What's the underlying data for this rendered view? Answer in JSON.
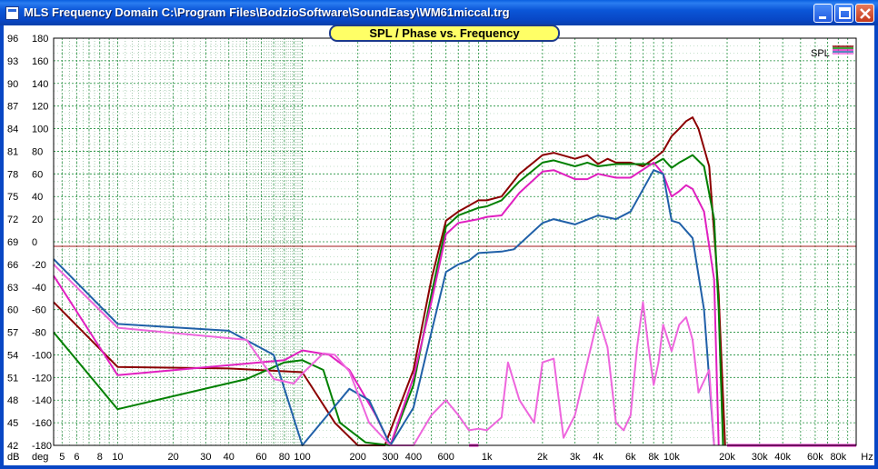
{
  "window": {
    "title": "MLS Frequency Domain  C:\\Program Files\\BodzioSoftware\\SoundEasy\\WM61miccal.trg",
    "buttons": [
      "minimize",
      "maximize",
      "close"
    ],
    "colors": {
      "titlebar": "#0846c4",
      "title_pill": "#ffff66"
    }
  },
  "chart_data": {
    "type": "line",
    "title": "SPL / Phase vs. Frequency",
    "xscale": "log",
    "xlim": [
      4.5,
      100000
    ],
    "x_ticks": [
      {
        "v": 5,
        "label": "5"
      },
      {
        "v": 6,
        "label": "6"
      },
      {
        "v": 8,
        "label": "8"
      },
      {
        "v": 10,
        "label": "10"
      },
      {
        "v": 20,
        "label": "20"
      },
      {
        "v": 30,
        "label": "30"
      },
      {
        "v": 40,
        "label": "40"
      },
      {
        "v": 60,
        "label": "60"
      },
      {
        "v": 80,
        "label": "80"
      },
      {
        "v": 100,
        "label": "100"
      },
      {
        "v": 200,
        "label": "200"
      },
      {
        "v": 300,
        "label": "300"
      },
      {
        "v": 400,
        "label": "400"
      },
      {
        "v": 600,
        "label": "600"
      },
      {
        "v": 1000,
        "label": "1k"
      },
      {
        "v": 2000,
        "label": "2k"
      },
      {
        "v": 3000,
        "label": "3k"
      },
      {
        "v": 4000,
        "label": "4k"
      },
      {
        "v": 6000,
        "label": "6k"
      },
      {
        "v": 8000,
        "label": "8k"
      },
      {
        "v": 10000,
        "label": "10k"
      },
      {
        "v": 20000,
        "label": "20k"
      },
      {
        "v": 30000,
        "label": "30k"
      },
      {
        "v": 40000,
        "label": "40k"
      },
      {
        "v": 60000,
        "label": "60k"
      },
      {
        "v": 80000,
        "label": "80k"
      }
    ],
    "x_unit": "Hz",
    "y_left": {
      "unit": "dB",
      "ylim": [
        42,
        96
      ],
      "ticks": [
        96,
        93,
        90,
        87,
        84,
        81,
        78,
        75,
        72,
        69,
        66,
        63,
        60,
        57,
        54,
        51,
        48,
        45,
        42
      ]
    },
    "y_right": {
      "unit": "deg",
      "ylim": [
        -180,
        180
      ],
      "ticks": [
        "180",
        "160",
        "140",
        "120",
        "100",
        "80",
        "60",
        "40",
        "20",
        "0",
        "-20",
        "-40",
        "-60",
        "-80",
        "-100",
        "-120",
        "-140",
        "-160",
        "-180"
      ]
    },
    "grid": true,
    "reference_line_db": 68.4,
    "legend": {
      "label": "SPL",
      "placement": "top-right"
    },
    "series": [
      {
        "color": "#8b0000",
        "points": [
          [
            4.5,
            61
          ],
          [
            10,
            52.4
          ],
          [
            40,
            52.2
          ],
          [
            100,
            51.7
          ],
          [
            150,
            45
          ],
          [
            200,
            42
          ],
          [
            280,
            42
          ],
          [
            400,
            52
          ],
          [
            500,
            64
          ],
          [
            600,
            71.8
          ],
          [
            700,
            73
          ],
          [
            900,
            74.5
          ],
          [
            1000,
            74.5
          ],
          [
            1200,
            75
          ],
          [
            1500,
            78
          ],
          [
            2000,
            80.5
          ],
          [
            2300,
            80.8
          ],
          [
            3000,
            80
          ],
          [
            3500,
            80.5
          ],
          [
            4000,
            79.3
          ],
          [
            4500,
            80
          ],
          [
            5000,
            79.5
          ],
          [
            6000,
            79.5
          ],
          [
            7000,
            79
          ],
          [
            8000,
            80
          ],
          [
            9000,
            81
          ],
          [
            10000,
            83
          ],
          [
            11000,
            84
          ],
          [
            12000,
            85
          ],
          [
            13000,
            85.5
          ],
          [
            14000,
            84
          ],
          [
            16000,
            79
          ],
          [
            18000,
            62
          ],
          [
            19500,
            42
          ]
        ]
      },
      {
        "color": "#008000",
        "points": [
          [
            4.5,
            57
          ],
          [
            10,
            46.8
          ],
          [
            50,
            50.8
          ],
          [
            80,
            53
          ],
          [
            100,
            53.3
          ],
          [
            130,
            52
          ],
          [
            160,
            45
          ],
          [
            220,
            42.4
          ],
          [
            300,
            42
          ],
          [
            400,
            50
          ],
          [
            500,
            62
          ],
          [
            600,
            71
          ],
          [
            700,
            72.5
          ],
          [
            900,
            73.5
          ],
          [
            1000,
            73.7
          ],
          [
            1200,
            74.5
          ],
          [
            1500,
            77
          ],
          [
            2000,
            79.5
          ],
          [
            2300,
            79.8
          ],
          [
            3000,
            79
          ],
          [
            3500,
            79.5
          ],
          [
            4000,
            79
          ],
          [
            5000,
            79.3
          ],
          [
            6000,
            79.3
          ],
          [
            8000,
            79.3
          ],
          [
            9000,
            80
          ],
          [
            10000,
            78.8
          ],
          [
            11000,
            79.5
          ],
          [
            12000,
            80
          ],
          [
            13000,
            80.5
          ],
          [
            15000,
            79
          ],
          [
            17000,
            72
          ],
          [
            18000,
            60
          ],
          [
            19000,
            42
          ]
        ]
      },
      {
        "color": "#e020c0",
        "points": [
          [
            4.5,
            64.5
          ],
          [
            10,
            51.3
          ],
          [
            80,
            53.3
          ],
          [
            100,
            54.6
          ],
          [
            140,
            54
          ],
          [
            180,
            52
          ],
          [
            250,
            46
          ],
          [
            300,
            42
          ],
          [
            400,
            51
          ],
          [
            500,
            61
          ],
          [
            600,
            70
          ],
          [
            700,
            71.5
          ],
          [
            900,
            72
          ],
          [
            1000,
            72.3
          ],
          [
            1200,
            72.5
          ],
          [
            1500,
            75.5
          ],
          [
            2000,
            78.3
          ],
          [
            2300,
            78.5
          ],
          [
            3000,
            77.3
          ],
          [
            3500,
            77.3
          ],
          [
            4000,
            78
          ],
          [
            5000,
            77.5
          ],
          [
            6000,
            77.5
          ],
          [
            8000,
            79.5
          ],
          [
            9000,
            78
          ],
          [
            10000,
            75
          ],
          [
            11000,
            75.7
          ],
          [
            12000,
            76.5
          ],
          [
            13000,
            76
          ],
          [
            15000,
            73
          ],
          [
            17000,
            64
          ],
          [
            18000,
            42
          ]
        ]
      },
      {
        "color": "#2060a8",
        "points": [
          [
            4.5,
            66.7
          ],
          [
            10,
            58.1
          ],
          [
            40,
            57.2
          ],
          [
            70,
            54
          ],
          [
            100,
            42
          ],
          [
            180,
            49.5
          ],
          [
            230,
            48
          ],
          [
            300,
            42
          ],
          [
            400,
            47
          ],
          [
            500,
            57
          ],
          [
            600,
            65
          ],
          [
            700,
            66
          ],
          [
            800,
            66.5
          ],
          [
            900,
            67.5
          ],
          [
            1200,
            67.7
          ],
          [
            1400,
            68
          ],
          [
            2000,
            71.5
          ],
          [
            2300,
            72
          ],
          [
            3000,
            71.3
          ],
          [
            4000,
            72.5
          ],
          [
            5000,
            72
          ],
          [
            6000,
            73
          ],
          [
            8000,
            78.5
          ],
          [
            9000,
            78
          ],
          [
            10000,
            71.8
          ],
          [
            11000,
            71.5
          ],
          [
            13000,
            69.5
          ],
          [
            15000,
            60
          ],
          [
            17000,
            42
          ]
        ]
      },
      {
        "color": "#ee66dd",
        "points": [
          [
            4.5,
            66
          ],
          [
            10,
            57.6
          ],
          [
            50,
            56
          ],
          [
            70,
            50.8
          ],
          [
            90,
            50.2
          ],
          [
            100,
            51.5
          ],
          [
            130,
            54.2
          ],
          [
            150,
            54
          ],
          [
            180,
            51.8
          ],
          [
            230,
            45
          ],
          [
            300,
            42
          ],
          [
            400,
            42
          ],
          [
            500,
            46
          ],
          [
            600,
            48
          ],
          [
            700,
            46
          ],
          [
            800,
            44
          ],
          [
            900,
            44.2
          ],
          [
            1000,
            44
          ],
          [
            1200,
            45.7
          ],
          [
            1300,
            53
          ],
          [
            1500,
            48
          ],
          [
            1800,
            45
          ],
          [
            2000,
            53
          ],
          [
            2300,
            53.5
          ],
          [
            2600,
            43
          ],
          [
            3000,
            46
          ],
          [
            3500,
            53
          ],
          [
            4000,
            59
          ],
          [
            4500,
            55
          ],
          [
            5000,
            45
          ],
          [
            5500,
            44
          ],
          [
            6000,
            46
          ],
          [
            6500,
            55
          ],
          [
            7000,
            61
          ],
          [
            7500,
            55
          ],
          [
            8000,
            50
          ],
          [
            8500,
            53
          ],
          [
            9000,
            58
          ],
          [
            10000,
            54.5
          ],
          [
            11000,
            58
          ],
          [
            12000,
            59
          ],
          [
            13000,
            56
          ],
          [
            14000,
            49
          ],
          [
            16000,
            52
          ],
          [
            17000,
            42
          ]
        ]
      }
    ]
  }
}
